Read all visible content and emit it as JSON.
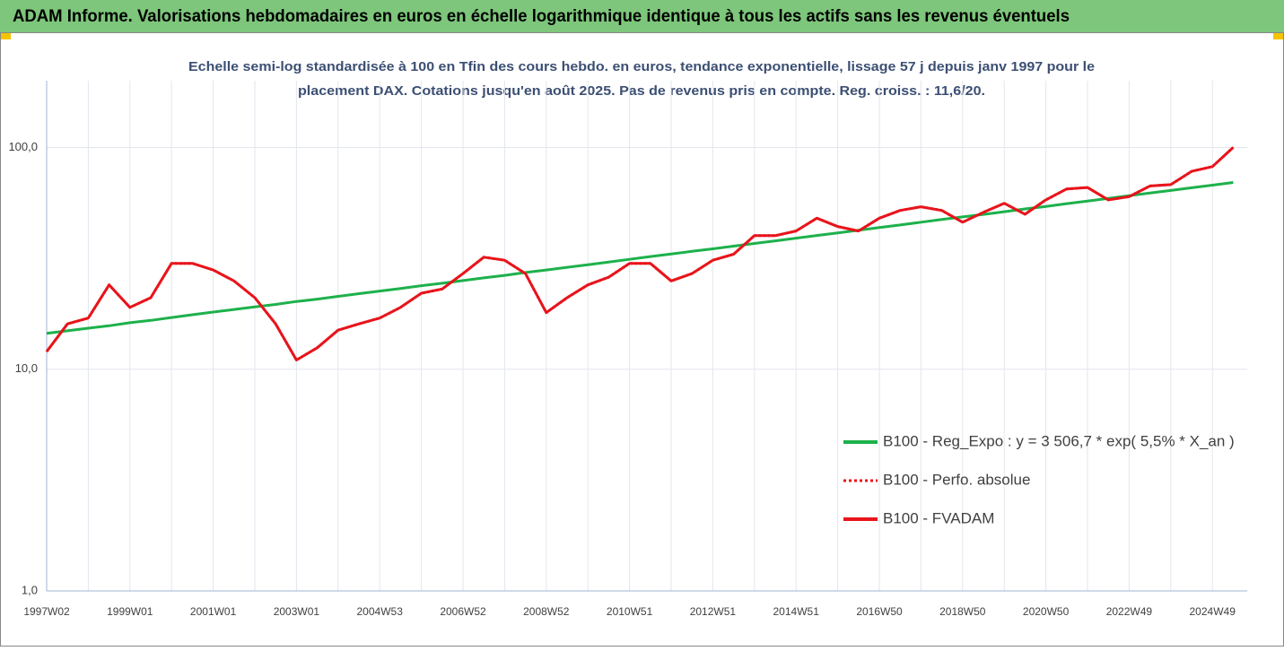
{
  "header": {
    "title": "ADAM Informe. Valorisations hebdomadaires en euros en échelle logarithmique identique à tous les actifs sans les revenus éventuels"
  },
  "chart_data": {
    "type": "line",
    "title": [
      "Echelle semi-log standardisée à 100 en Tfin des cours hebdo. en euros, tendance exponentielle, lissage 57 j depuis janv 1997 pour le",
      "placement DAX. Cotations jusqu'en août 2025. Pas de revenus pris en compte. Reg. croiss. : 11,6/20."
    ],
    "categories": [
      "1997W02",
      null,
      null,
      null,
      "1999W01",
      null,
      null,
      null,
      "2001W01",
      null,
      null,
      null,
      "2003W01",
      null,
      null,
      null,
      "2004W53",
      null,
      null,
      null,
      "2006W52",
      null,
      null,
      null,
      "2008W52",
      null,
      null,
      null,
      "2010W51",
      null,
      null,
      null,
      "2012W51",
      null,
      null,
      null,
      "2014W51",
      null,
      null,
      null,
      "2016W50",
      null,
      null,
      null,
      "2018W50",
      null,
      null,
      null,
      "2020W50",
      null,
      null,
      null,
      "2022W49",
      null,
      null,
      null,
      "2024W49",
      null
    ],
    "log_scale": true,
    "ylim": [
      1,
      200
    ],
    "yticks": [
      {
        "value": 1,
        "label": "1,0"
      },
      {
        "value": 10,
        "label": "10,0"
      },
      {
        "value": 100,
        "label": "100,0"
      }
    ],
    "grid": true,
    "legend": "lower right",
    "series": [
      {
        "name": "B100 - Reg_Expo : y = 3 506,7 * exp( 5,5% *  X_an )",
        "color": "#1db14b",
        "style": "solid",
        "values": [
          14.5,
          14.9,
          15.3,
          15.7,
          16.2,
          16.6,
          17.1,
          17.6,
          18.1,
          18.6,
          19.1,
          19.6,
          20.2,
          20.7,
          21.3,
          21.9,
          22.5,
          23.1,
          23.8,
          24.4,
          25.1,
          25.8,
          26.5,
          27.3,
          28.0,
          28.8,
          29.6,
          30.4,
          31.3,
          32.2,
          33.1,
          34.0,
          34.9,
          35.9,
          36.9,
          37.9,
          39.0,
          40.1,
          41.2,
          42.3,
          43.5,
          44.7,
          46.0,
          47.3,
          48.6,
          49.9,
          51.3,
          52.8,
          54.2,
          55.8,
          57.3,
          58.9,
          60.6,
          62.3,
          64.0,
          65.8,
          67.6,
          69.5
        ]
      },
      {
        "name": "B100 - Perfo. absolue",
        "color": "#e8141b",
        "style": "dotted",
        "values": [
          12,
          16,
          17,
          24,
          19,
          21,
          30,
          30,
          28,
          25,
          21,
          16,
          11,
          12.5,
          15,
          16,
          17,
          19,
          22,
          23,
          27,
          32,
          31,
          27,
          18,
          21,
          24,
          26,
          30,
          30,
          25,
          27,
          31,
          33,
          40,
          40,
          42,
          48,
          44,
          42,
          48,
          52,
          54,
          52,
          46,
          51,
          56,
          50,
          58,
          65,
          66,
          58,
          60,
          67,
          68,
          78,
          82,
          100
        ]
      },
      {
        "name": "B100 - FVADAM",
        "color": "#e8141b",
        "style": "solid",
        "values": [
          12,
          16,
          17,
          24,
          19,
          21,
          30,
          30,
          28,
          25,
          21,
          16,
          11,
          12.5,
          15,
          16,
          17,
          19,
          22,
          23,
          27,
          32,
          31,
          27,
          18,
          21,
          24,
          26,
          30,
          30,
          25,
          27,
          31,
          33,
          40,
          40,
          42,
          48,
          44,
          42,
          48,
          52,
          54,
          52,
          46,
          51,
          56,
          50,
          58,
          65,
          66,
          58,
          60,
          67,
          68,
          78,
          82,
          100
        ]
      }
    ]
  }
}
